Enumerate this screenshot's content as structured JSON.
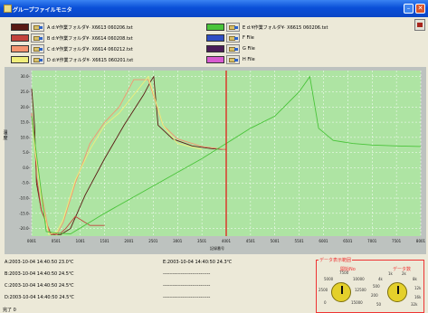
{
  "window": {
    "title": "グループファイルモニタ"
  },
  "colors": {
    "A": "#5a1a14",
    "B": "#c3433c",
    "C": "#f49470",
    "D": "#f0ee7b",
    "E": "#4ac43a",
    "F": "#2f4ec4",
    "G": "#4a1c58",
    "H": "#d85ad0",
    "plot_bg": "#aee4a3",
    "cursor": "#e51010",
    "x_axis_label": "#c00000"
  },
  "files": {
    "A": {
      "letter": "A",
      "name": "d:¥作業フォルダ¥· X6613 060206.txt"
    },
    "B": {
      "letter": "B",
      "name": "d:¥作業フォルダ¥· X6614 060208.txt"
    },
    "C": {
      "letter": "C",
      "name": "d:¥作業フォルダ¥· X6614 060212.txt"
    },
    "D": {
      "letter": "D",
      "name": "d:¥作業フォルダ¥· X6615 060201.txt"
    },
    "E": {
      "letter": "E",
      "name": "d:¥作業フォルダ¥· X6615 060206.txt"
    },
    "F": {
      "letter": "F",
      "name": "File"
    },
    "G": {
      "letter": "G",
      "name": "File"
    },
    "H": {
      "letter": "H",
      "name": "File"
    }
  },
  "chart": {
    "y_axis_label": "温度",
    "x_axis_label": "記録番号",
    "y_ticks": [
      "30.0-",
      "25.0-",
      "20.0-",
      "15.0-",
      "10.0-",
      "5.0-",
      "0.0-",
      "-5.0-",
      "-10.0-",
      "-15.0-",
      "-20.0-"
    ],
    "x_ticks": [
      "0001",
      "0501",
      "1001",
      "1501",
      "2001",
      "2501",
      "3001",
      "3501",
      "4001",
      "4501",
      "5001",
      "5501",
      "6001",
      "6501",
      "7001",
      "7501",
      "8001"
    ],
    "cursor_x": 4001
  },
  "chart_data": {
    "type": "line",
    "title": "",
    "xlabel": "記録番号",
    "ylabel": "温度",
    "xlim": [
      1,
      8001
    ],
    "ylim": [
      -22.5,
      32
    ],
    "grid": true,
    "series": [
      {
        "name": "A",
        "color": "#5a1a14",
        "x": [
          1,
          60,
          100,
          200,
          400,
          600,
          800,
          1100,
          1500,
          1900,
          2300,
          2450,
          2510,
          2600,
          2900,
          3300,
          3700,
          4001
        ],
        "y": [
          26,
          14,
          -5,
          -14,
          -22,
          -22,
          -20,
          -9,
          3,
          14,
          24,
          28.5,
          30,
          14,
          9.5,
          7.2,
          6.3,
          6.0
        ]
      },
      {
        "name": "B",
        "color": "#c3433c",
        "x": [
          1,
          60,
          100,
          200,
          400,
          600,
          700,
          900,
          1200,
          1500
        ],
        "y": [
          18,
          10,
          -3,
          -14,
          -22,
          -21.5,
          -20,
          -16,
          -19,
          -19
        ]
      },
      {
        "name": "C",
        "color": "#f49470",
        "x": [
          1,
          80,
          200,
          350,
          520,
          650,
          900,
          1200,
          1500,
          1800,
          2100,
          2400,
          2700,
          3000,
          3500,
          4000
        ],
        "y": [
          18,
          4,
          -8,
          -21,
          -22,
          -18,
          -5,
          8,
          15,
          20,
          29,
          29,
          14,
          9.5,
          7,
          6
        ]
      },
      {
        "name": "D",
        "color": "#f0ee7b",
        "x": [
          1,
          80,
          200,
          350,
          520,
          650,
          900,
          1200,
          1500,
          1800,
          2100,
          2400,
          2700,
          3000,
          3500
        ],
        "y": [
          17,
          5,
          -10,
          -22,
          -21,
          -17,
          -4,
          6,
          14,
          18,
          24,
          30,
          14,
          8,
          6
        ]
      },
      {
        "name": "E",
        "color": "#4ac43a",
        "x": [
          1,
          300,
          500,
          800,
          1500,
          2500,
          3500,
          4000,
          4500,
          5000,
          5500,
          5720,
          5900,
          6200,
          6600,
          7000,
          7500,
          8001
        ],
        "y": [
          17,
          -21,
          -21.5,
          -21.8,
          -15,
          -6,
          3,
          8,
          13,
          17,
          25,
          30,
          13,
          9,
          8,
          7.5,
          7.2,
          7.0
        ]
      }
    ]
  },
  "readouts": {
    "A": "A:2003-10-04 14:40:50 23.0℃",
    "B": "B:2003-10-04 14:40:50 24.5℃",
    "C": "C:2003-10-04 14:40:50 24.5℃",
    "D": "D:2003-10-04 14:40:50 24.5℃",
    "E": "E:2003-10-04 14:40:50 24.3℃",
    "F": "-----------------------------",
    "G": "-----------------------------",
    "H": "-----------------------------"
  },
  "range": {
    "title": "データ表示範囲",
    "start_label": "開始No",
    "count_label": "データ数",
    "start_scale": [
      "7500",
      "5000",
      "10000",
      "2500",
      "12500",
      "0",
      "15000"
    ],
    "count_scale": [
      "1k",
      "2k",
      "4k",
      "8k",
      "500",
      "12k",
      "200",
      "16k",
      "50",
      "32k"
    ]
  },
  "status": {
    "text": "完了 0"
  }
}
